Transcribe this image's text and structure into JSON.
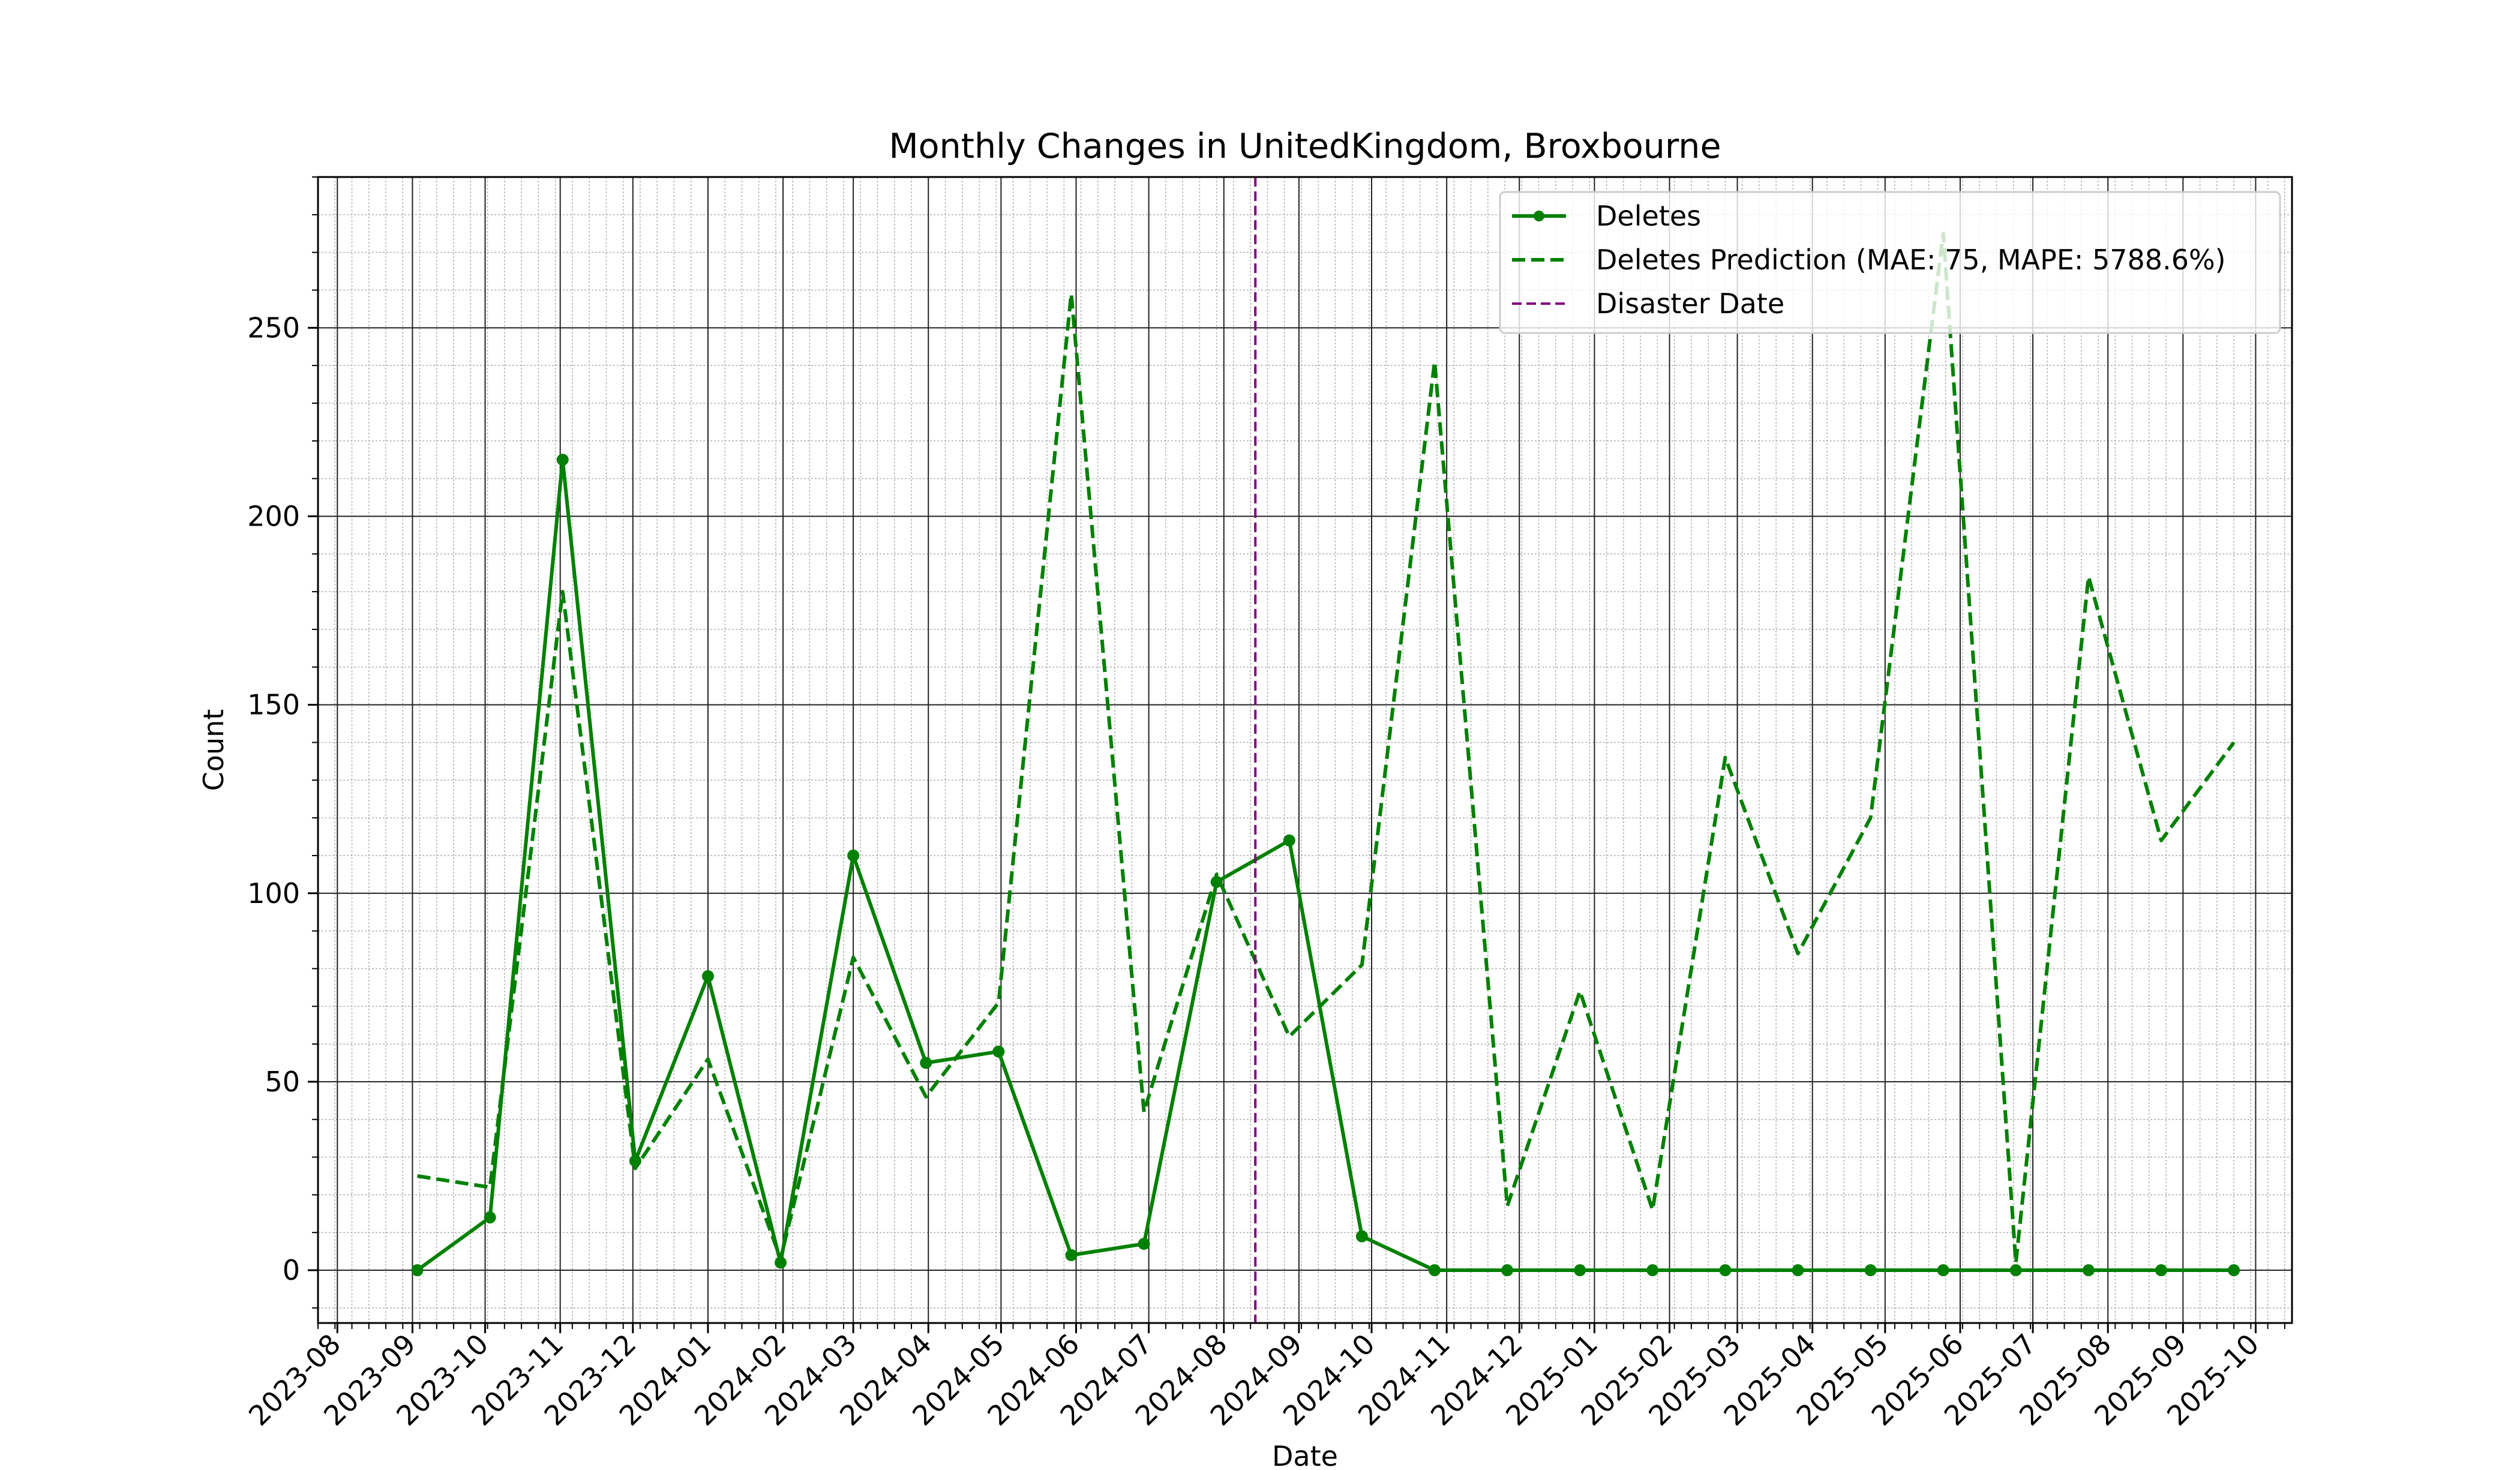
{
  "chart_data": {
    "type": "line",
    "title": "Monthly Changes in UnitedKingdom, Broxbourne",
    "xlabel": "Date",
    "ylabel": "Count",
    "xlim": [
      "2023-07-24",
      "2025-10-16"
    ],
    "ylim": [
      -14,
      290
    ],
    "grid": "major and minor",
    "legend_position": "top-right",
    "x_tick_labels": [
      "2023-08",
      "2023-09",
      "2023-10",
      "2023-11",
      "2023-12",
      "2024-01",
      "2024-02",
      "2024-03",
      "2024-04",
      "2024-05",
      "2024-06",
      "2024-07",
      "2024-08",
      "2024-09",
      "2024-10",
      "2024-11",
      "2024-12",
      "2025-01",
      "2025-02",
      "2025-03",
      "2025-04",
      "2025-05",
      "2025-06",
      "2025-07",
      "2025-08",
      "2025-09",
      "2025-10"
    ],
    "y_ticks": [
      0,
      50,
      100,
      150,
      200,
      250
    ],
    "series": [
      {
        "name": "Deletes",
        "style": "solid-with-markers",
        "color": "#008000",
        "x": [
          "2023-09-03",
          "2023-10-03",
          "2023-11-02",
          "2023-12-02",
          "2024-01-01",
          "2024-01-31",
          "2024-03-01",
          "2024-03-31",
          "2024-04-30",
          "2024-05-30",
          "2024-06-29",
          "2024-07-29",
          "2024-08-28",
          "2024-09-27",
          "2024-10-27",
          "2024-11-26",
          "2024-12-26",
          "2025-01-25",
          "2025-02-24",
          "2025-03-26",
          "2025-04-25",
          "2025-05-25",
          "2025-06-24",
          "2025-07-24",
          "2025-08-23",
          "2025-09-22"
        ],
        "values": [
          0,
          14,
          215,
          29,
          78,
          2,
          110,
          55,
          58,
          4,
          7,
          103,
          114,
          9,
          0,
          0,
          0,
          0,
          0,
          0,
          0,
          0,
          0,
          0,
          0,
          0
        ]
      },
      {
        "name": "Deletes Prediction (MAE: 75, MAPE: 5788.6%)",
        "style": "dashed",
        "color": "#008000",
        "x": [
          "2023-09-03",
          "2023-10-03",
          "2023-11-02",
          "2023-12-02",
          "2024-01-01",
          "2024-01-31",
          "2024-03-01",
          "2024-03-31",
          "2024-04-30",
          "2024-05-30",
          "2024-06-29",
          "2024-07-29",
          "2024-08-28",
          "2024-09-27",
          "2024-10-27",
          "2024-11-26",
          "2024-12-26",
          "2025-01-25",
          "2025-02-24",
          "2025-03-26",
          "2025-04-25",
          "2025-05-25",
          "2025-06-24",
          "2025-07-24",
          "2025-08-23",
          "2025-09-22"
        ],
        "values": [
          25,
          22,
          180,
          27,
          56,
          3,
          83,
          46,
          71,
          259,
          42,
          105,
          62,
          81,
          241,
          17,
          74,
          16,
          136,
          84,
          120,
          275,
          2,
          184,
          114,
          140
        ]
      }
    ],
    "vlines": [
      {
        "name": "Disaster Date",
        "x": "2024-08-14",
        "color": "#800080",
        "style": "dashed"
      }
    ]
  }
}
